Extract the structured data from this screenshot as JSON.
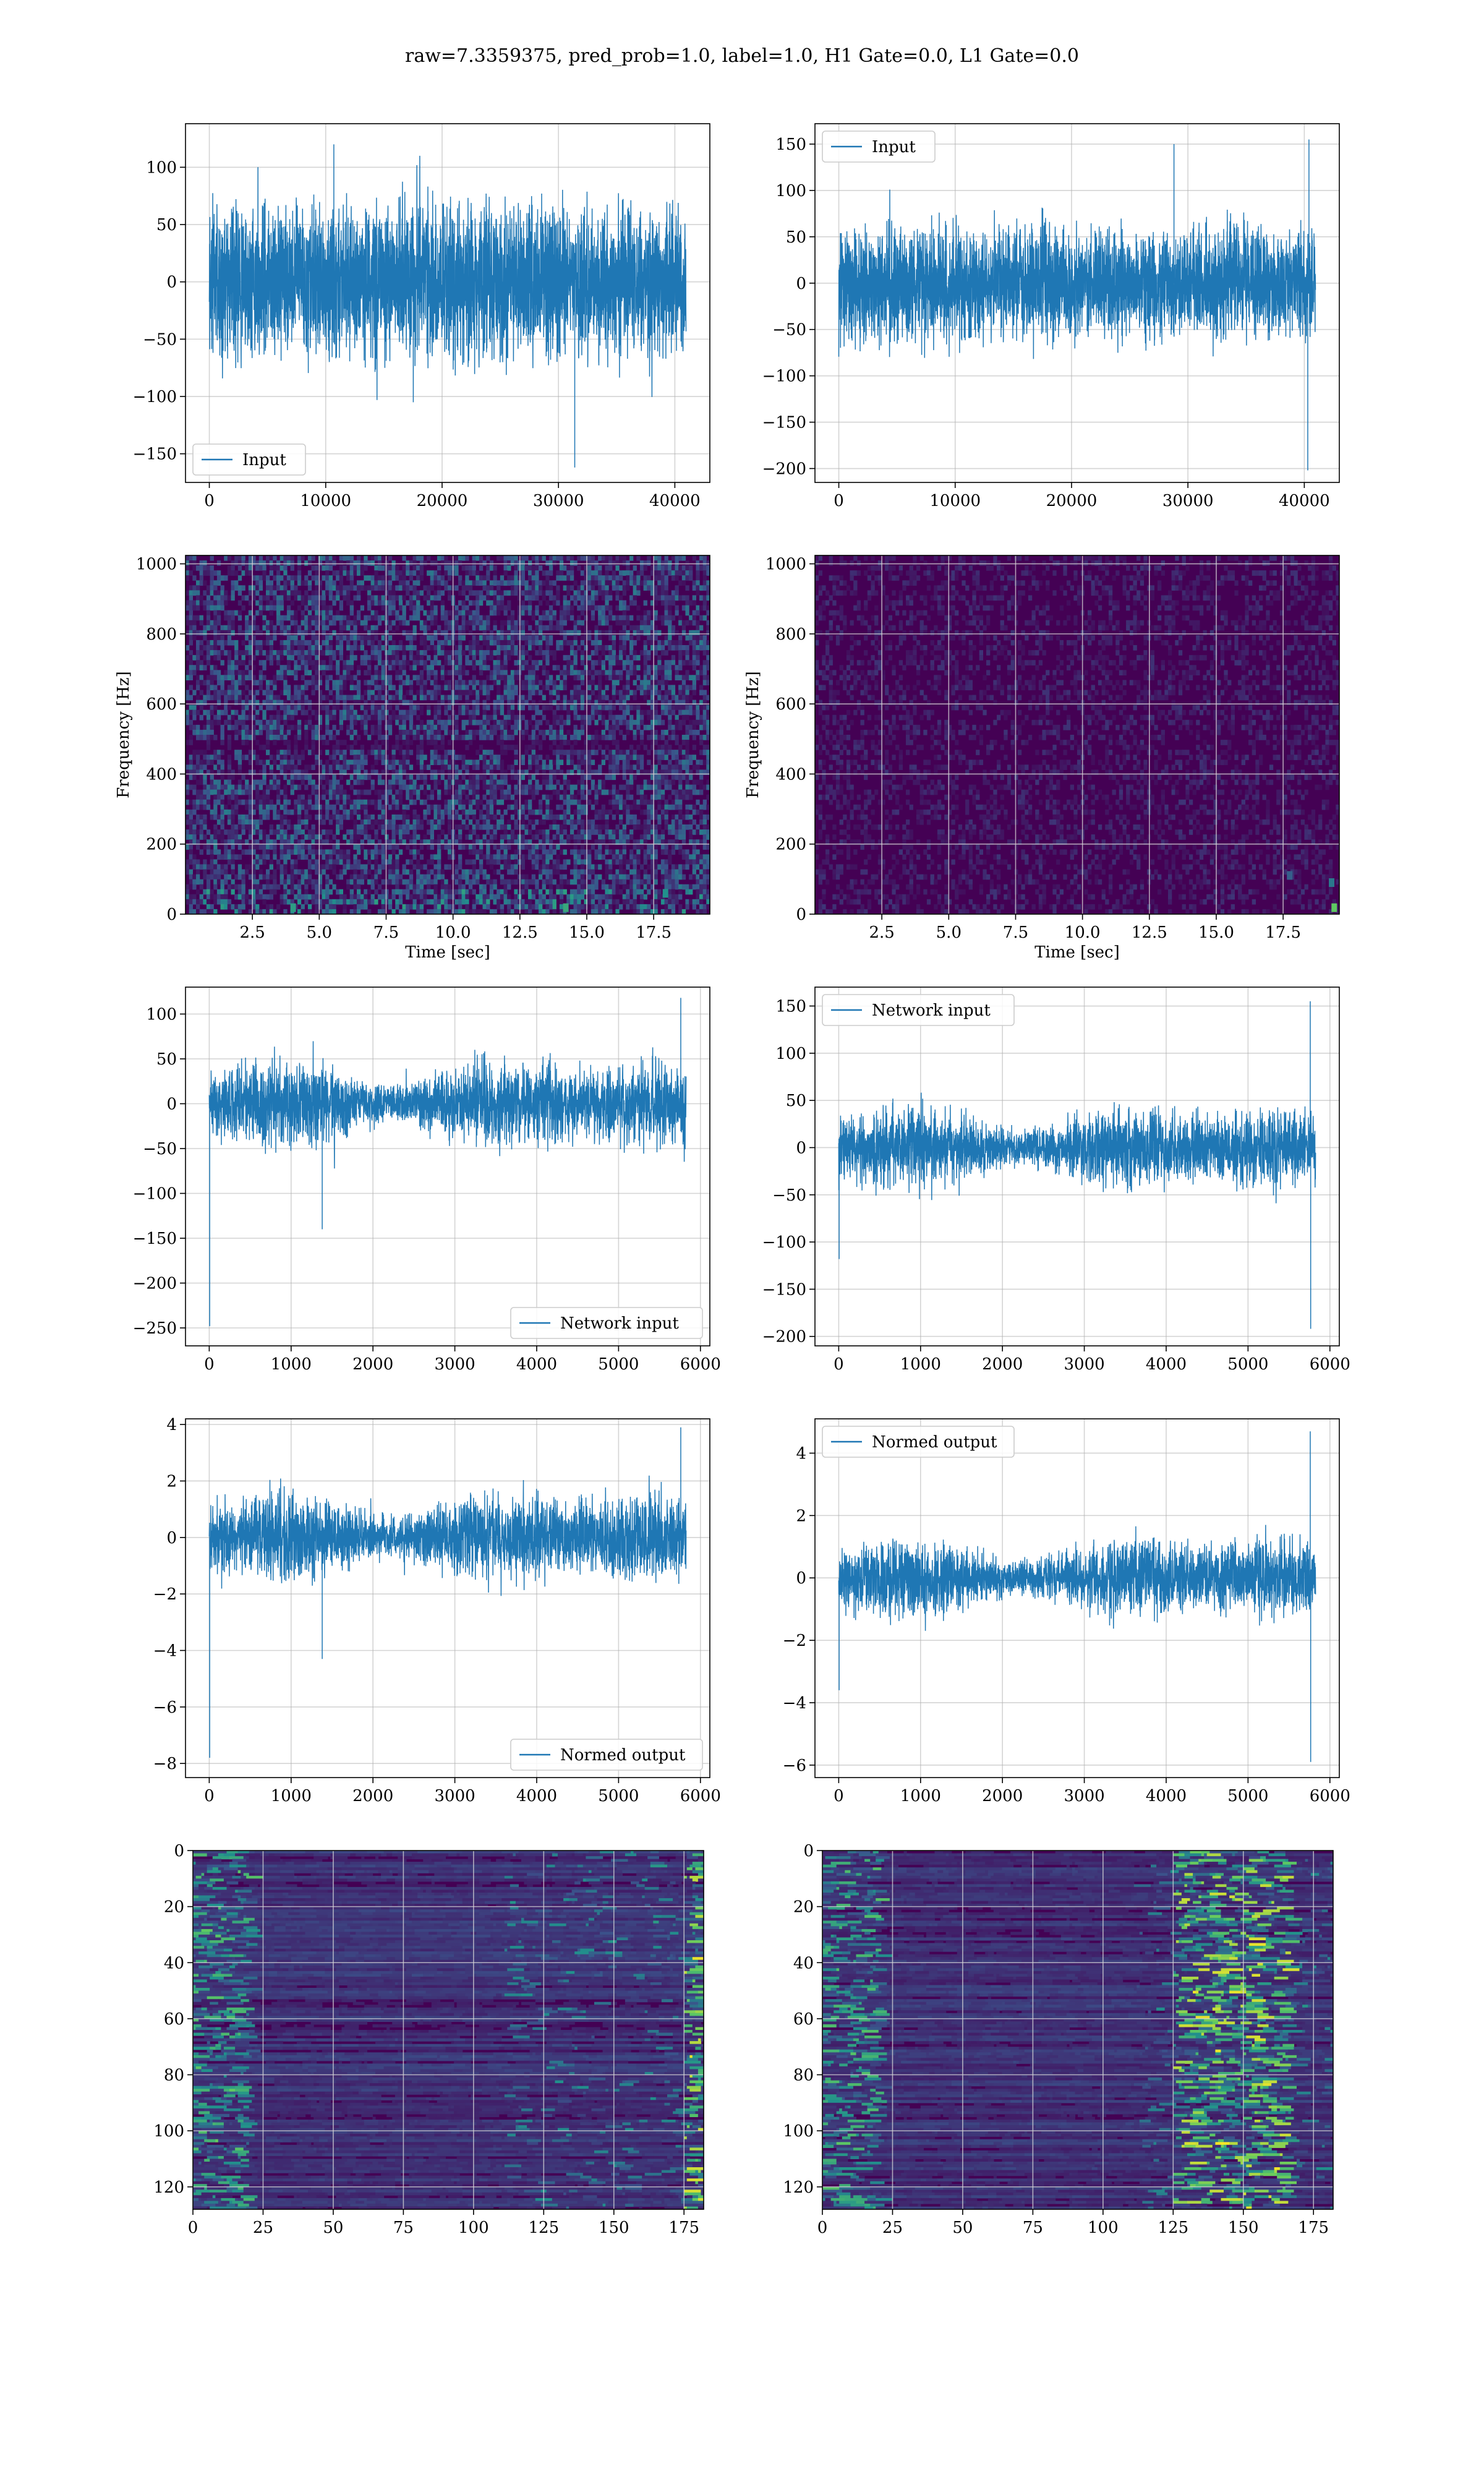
{
  "figure": {
    "title": "raw=7.3359375, pred_prob=1.0, label=1.0, H1 Gate=0.0, L1 Gate=0.0"
  },
  "colors": {
    "line": "#1f77b4",
    "grid": "#b0b0b0",
    "spectro_bg": "#440154",
    "viridis": [
      "#440154",
      "#3b528b",
      "#21918c",
      "#5ec962",
      "#fde725"
    ]
  },
  "chart_data": [
    {
      "type": "line",
      "panel": "top-left",
      "series_style": "noise-dense",
      "x": [
        0,
        40960
      ],
      "xlim": [
        -2048,
        43008
      ],
      "ylim": [
        -175,
        138
      ],
      "xticks": [
        0,
        10000,
        20000,
        30000,
        40000
      ],
      "xtick_labels": [
        "0",
        "10000",
        "20000",
        "30000",
        "40000"
      ],
      "yticks": [
        -150,
        -100,
        -50,
        0,
        50,
        100
      ],
      "ytick_labels": [
        "−150",
        "−100",
        "−50",
        "0",
        "50",
        "100"
      ],
      "band": [
        -60,
        60
      ],
      "extremes": [
        [
          10700,
          120
        ],
        [
          31400,
          -162
        ]
      ],
      "series": [
        {
          "name": "Input"
        }
      ],
      "legend": "lower left",
      "xlabel": "",
      "ylabel": ""
    },
    {
      "type": "line",
      "panel": "top-right",
      "series_style": "noise-dense",
      "x": [
        0,
        40960
      ],
      "xlim": [
        -2048,
        43008
      ],
      "ylim": [
        -215,
        172
      ],
      "xticks": [
        0,
        10000,
        20000,
        30000,
        40000
      ],
      "xtick_labels": [
        "0",
        "10000",
        "20000",
        "30000",
        "40000"
      ],
      "yticks": [
        -200,
        -150,
        -100,
        -50,
        0,
        50,
        100,
        150
      ],
      "ytick_labels": [
        "−200",
        "−150",
        "−100",
        "−50",
        "0",
        "50",
        "100",
        "150"
      ],
      "band": [
        -55,
        55
      ],
      "extremes": [
        [
          28800,
          150
        ],
        [
          40400,
          155
        ],
        [
          40300,
          -202
        ]
      ],
      "series": [
        {
          "name": "Input"
        }
      ],
      "legend": "upper left",
      "xlabel": "",
      "ylabel": ""
    },
    {
      "type": "heatmap",
      "panel": "spectrogram-left",
      "intensity": "bright",
      "xlim": [
        0,
        19.6
      ],
      "ylim": [
        0,
        1024
      ],
      "xticks": [
        2.5,
        5,
        7.5,
        10,
        12.5,
        15,
        17.5
      ],
      "xtick_labels": [
        "2.5",
        "5.0",
        "7.5",
        "10.0",
        "12.5",
        "15.0",
        "17.5"
      ],
      "yticks": [
        0,
        200,
        400,
        600,
        800,
        1000
      ],
      "ytick_labels": [
        "0",
        "200",
        "400",
        "600",
        "800",
        "1000"
      ],
      "xlabel": "Time [sec]",
      "ylabel": "Frequency [Hz]"
    },
    {
      "type": "heatmap",
      "panel": "spectrogram-right",
      "intensity": "dim",
      "xlim": [
        0,
        19.6
      ],
      "ylim": [
        0,
        1024
      ],
      "xticks": [
        2.5,
        5,
        7.5,
        10,
        12.5,
        15,
        17.5
      ],
      "xtick_labels": [
        "2.5",
        "5.0",
        "7.5",
        "10.0",
        "12.5",
        "15.0",
        "17.5"
      ],
      "yticks": [
        0,
        200,
        400,
        600,
        800,
        1000
      ],
      "ytick_labels": [
        "0",
        "200",
        "400",
        "600",
        "800",
        "1000"
      ],
      "xlabel": "Time [sec]",
      "ylabel": "Frequency [Hz]"
    },
    {
      "type": "line",
      "panel": "network-input-left",
      "series_style": "noise",
      "x": [
        0,
        5825
      ],
      "xlim": [
        -290,
        6115
      ],
      "ylim": [
        -270,
        130
      ],
      "xticks": [
        0,
        1000,
        2000,
        3000,
        4000,
        5000,
        6000
      ],
      "xtick_labels": [
        "0",
        "1000",
        "2000",
        "3000",
        "4000",
        "5000",
        "6000"
      ],
      "yticks": [
        -250,
        -200,
        -150,
        -100,
        -50,
        0,
        50,
        100
      ],
      "ytick_labels": [
        "−250",
        "−200",
        "−150",
        "−100",
        "−50",
        "0",
        "50",
        "100"
      ],
      "band": [
        -45,
        45
      ],
      "extremes": [
        [
          5,
          -248
        ],
        [
          1380,
          -140
        ],
        [
          5760,
          118
        ]
      ],
      "series": [
        {
          "name": "Network input"
        }
      ],
      "legend": "lower right",
      "xlabel": "",
      "ylabel": ""
    },
    {
      "type": "line",
      "panel": "network-input-right",
      "series_style": "noise",
      "x": [
        0,
        5825
      ],
      "xlim": [
        -290,
        6115
      ],
      "ylim": [
        -210,
        170
      ],
      "xticks": [
        0,
        1000,
        2000,
        3000,
        4000,
        5000,
        6000
      ],
      "xtick_labels": [
        "0",
        "1000",
        "2000",
        "3000",
        "4000",
        "5000",
        "6000"
      ],
      "yticks": [
        -200,
        -150,
        -100,
        -50,
        0,
        50,
        100,
        150
      ],
      "ytick_labels": [
        "−200",
        "−150",
        "−100",
        "−50",
        "0",
        "50",
        "100",
        "150"
      ],
      "band": [
        -40,
        40
      ],
      "extremes": [
        [
          5,
          -118
        ],
        [
          5760,
          155
        ],
        [
          5765,
          -192
        ]
      ],
      "series": [
        {
          "name": "Network input"
        }
      ],
      "legend": "upper left",
      "xlabel": "",
      "ylabel": ""
    },
    {
      "type": "line",
      "panel": "normed-output-left",
      "series_style": "noise",
      "x": [
        0,
        5825
      ],
      "xlim": [
        -290,
        6115
      ],
      "ylim": [
        -8.5,
        4.2
      ],
      "xticks": [
        0,
        1000,
        2000,
        3000,
        4000,
        5000,
        6000
      ],
      "xtick_labels": [
        "0",
        "1000",
        "2000",
        "3000",
        "4000",
        "5000",
        "6000"
      ],
      "yticks": [
        -8,
        -6,
        -4,
        -2,
        0,
        2,
        4
      ],
      "ytick_labels": [
        "−8",
        "−6",
        "−4",
        "−2",
        "0",
        "2",
        "4"
      ],
      "band": [
        -1.5,
        1.5
      ],
      "extremes": [
        [
          5,
          -7.8
        ],
        [
          1380,
          -4.3
        ],
        [
          5760,
          3.9
        ]
      ],
      "series": [
        {
          "name": "Normed output"
        }
      ],
      "legend": "lower right",
      "xlabel": "",
      "ylabel": ""
    },
    {
      "type": "line",
      "panel": "normed-output-right",
      "series_style": "noise",
      "x": [
        0,
        5825
      ],
      "xlim": [
        -290,
        6115
      ],
      "ylim": [
        -6.4,
        5.1
      ],
      "xticks": [
        0,
        1000,
        2000,
        3000,
        4000,
        5000,
        6000
      ],
      "xtick_labels": [
        "0",
        "1000",
        "2000",
        "3000",
        "4000",
        "5000",
        "6000"
      ],
      "yticks": [
        -6,
        -4,
        -2,
        0,
        2,
        4
      ],
      "ytick_labels": [
        "−6",
        "−4",
        "−2",
        "0",
        "2",
        "4"
      ],
      "band": [
        -1.2,
        1.2
      ],
      "extremes": [
        [
          5,
          -3.6
        ],
        [
          5760,
          4.7
        ],
        [
          5765,
          -5.9
        ]
      ],
      "series": [
        {
          "name": "Normed output"
        }
      ],
      "legend": "upper left",
      "xlabel": "",
      "ylabel": ""
    },
    {
      "type": "heatmap",
      "panel": "feature-map-left",
      "hot_columns": [
        175,
        180
      ],
      "xlim": [
        0,
        182
      ],
      "ylim": [
        128,
        0
      ],
      "xticks": [
        0,
        25,
        50,
        75,
        100,
        125,
        150,
        175
      ],
      "xtick_labels": [
        "0",
        "25",
        "50",
        "75",
        "100",
        "125",
        "150",
        "175"
      ],
      "yticks": [
        0,
        20,
        40,
        60,
        80,
        100,
        120
      ],
      "ytick_labels": [
        "0",
        "20",
        "40",
        "60",
        "80",
        "100",
        "120"
      ],
      "xlabel": "",
      "ylabel": ""
    },
    {
      "type": "heatmap",
      "panel": "feature-map-right",
      "hot_columns": [
        125,
        165
      ],
      "xlim": [
        0,
        182
      ],
      "ylim": [
        128,
        0
      ],
      "xticks": [
        0,
        25,
        50,
        75,
        100,
        125,
        150,
        175
      ],
      "xtick_labels": [
        "0",
        "25",
        "50",
        "75",
        "100",
        "125",
        "150",
        "175"
      ],
      "yticks": [
        0,
        20,
        40,
        60,
        80,
        100,
        120
      ],
      "ytick_labels": [
        "0",
        "20",
        "40",
        "60",
        "80",
        "100",
        "120"
      ],
      "xlabel": "",
      "ylabel": ""
    }
  ]
}
